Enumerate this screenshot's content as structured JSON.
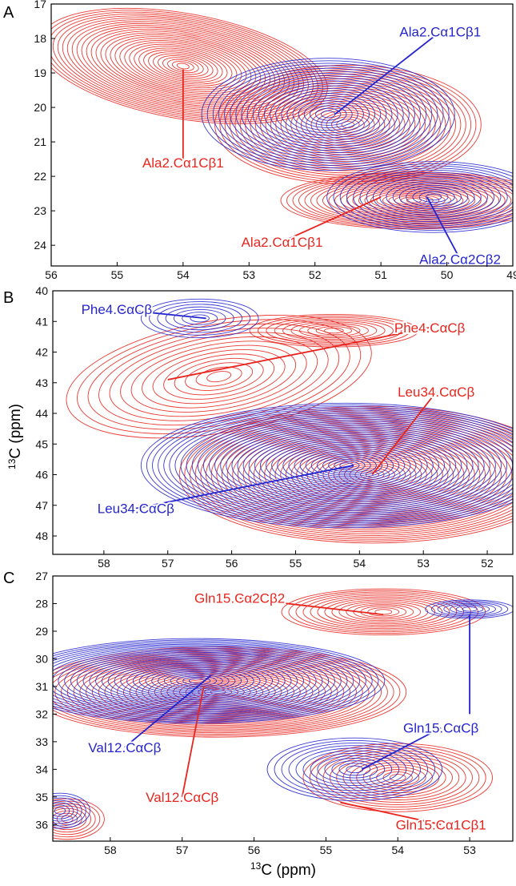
{
  "figure": {
    "xlabel": "13C (ppm)",
    "xlabel_sup": "13",
    "xlabel_rest": "C (ppm)",
    "ylabel": "13C (ppm)",
    "ylabel_sup": "13",
    "ylabel_rest": "C (ppm)"
  },
  "colors": {
    "red": "#e8251e",
    "blue": "#2525d0"
  },
  "chart_data": [
    {
      "panel": "A",
      "type": "contour",
      "xlim": [
        56,
        49
      ],
      "ylim": [
        17,
        24.6
      ],
      "x_ticks": [
        56,
        55,
        54,
        53,
        52,
        51,
        50,
        49
      ],
      "y_ticks": [
        17,
        18,
        19,
        20,
        21,
        22,
        23,
        24
      ],
      "series": [
        {
          "name": "red",
          "color": "#e8251e",
          "peaks": [
            {
              "x": 54.0,
              "y": 18.8,
              "rx": 2.2,
              "ry": 1.5,
              "angle": 10,
              "levels": 30
            },
            {
              "x": 51.5,
              "y": 20.5,
              "rx": 2.0,
              "ry": 1.7,
              "angle": 0,
              "levels": 26
            },
            {
              "x": 50.5,
              "y": 22.7,
              "rx": 2.0,
              "ry": 0.8,
              "angle": 0,
              "levels": 22
            }
          ]
        },
        {
          "name": "blue",
          "color": "#2525d0",
          "peaks": [
            {
              "x": 51.8,
              "y": 20.2,
              "rx": 1.9,
              "ry": 1.6,
              "angle": 0,
              "levels": 22
            },
            {
              "x": 50.2,
              "y": 22.6,
              "rx": 1.6,
              "ry": 1.0,
              "angle": 0,
              "levels": 16
            }
          ]
        }
      ],
      "annotations": [
        {
          "text": "Ala2.Cα1Cβ1",
          "color": "#2525d0",
          "x": 50.1,
          "y": 17.8,
          "tx": 51.7,
          "ty": 20.2
        },
        {
          "text": "Ala2.Cα1Cβ1",
          "color": "#e8251e",
          "x": 54.0,
          "y": 21.6,
          "tx": 54.0,
          "ty": 18.9
        },
        {
          "text": "Ala2.Cα1Cβ1",
          "color": "#e8251e",
          "x": 52.5,
          "y": 23.9,
          "tx": 51.0,
          "ty": 22.6
        },
        {
          "text": "Ala2.Cα2Cβ2",
          "color": "#2525d0",
          "x": 49.8,
          "y": 24.4,
          "tx": 50.3,
          "ty": 22.6
        }
      ]
    },
    {
      "panel": "B",
      "type": "contour",
      "xlim": [
        58.8,
        51.6
      ],
      "ylim": [
        40,
        48.6
      ],
      "x_ticks": [
        58,
        57,
        56,
        55,
        54,
        53,
        52
      ],
      "y_ticks": [
        40,
        41,
        42,
        43,
        44,
        45,
        46,
        47,
        48
      ],
      "series": [
        {
          "name": "red",
          "color": "#e8251e",
          "peaks": [
            {
              "x": 56.2,
              "y": 42.8,
              "rx": 2.4,
              "ry": 1.8,
              "angle": -10,
              "levels": 14
            },
            {
              "x": 54.4,
              "y": 41.3,
              "rx": 1.3,
              "ry": 0.5,
              "angle": 0,
              "levels": 10
            },
            {
              "x": 53.8,
              "y": 46.0,
              "rx": 3.0,
              "ry": 2.2,
              "angle": 0,
              "levels": 36
            }
          ]
        },
        {
          "name": "blue",
          "color": "#2525d0",
          "peaks": [
            {
              "x": 56.5,
              "y": 40.9,
              "rx": 0.9,
              "ry": 0.6,
              "angle": 0,
              "levels": 7
            },
            {
              "x": 54.2,
              "y": 45.7,
              "rx": 3.2,
              "ry": 2.0,
              "angle": 0,
              "levels": 36
            }
          ]
        }
      ],
      "annotations": [
        {
          "text": "Phe4.CαCβ",
          "color": "#2525d0",
          "x": 57.8,
          "y": 40.6,
          "tx": 56.4,
          "ty": 40.9
        },
        {
          "text": "Phe4.CαCβ",
          "color": "#e8251e",
          "x": 52.9,
          "y": 41.2,
          "tx": 57.0,
          "ty": 42.9
        },
        {
          "text": "Leu34.CαCβ",
          "color": "#e8251e",
          "x": 52.8,
          "y": 43.3,
          "tx": 53.8,
          "ty": 46.0
        },
        {
          "text": "Leu34.CαCβ",
          "color": "#2525d0",
          "x": 57.5,
          "y": 47.1,
          "tx": 54.1,
          "ty": 45.7
        }
      ]
    },
    {
      "panel": "C",
      "type": "contour",
      "xlim": [
        58.8,
        52.4
      ],
      "ylim": [
        27,
        36.6
      ],
      "x_ticks": [
        58,
        57,
        56,
        55,
        54,
        53
      ],
      "y_ticks": [
        27,
        28,
        29,
        30,
        31,
        32,
        33,
        34,
        35,
        36
      ],
      "series": [
        {
          "name": "red",
          "color": "#e8251e",
          "peaks": [
            {
              "x": 54.2,
              "y": 28.3,
              "rx": 1.4,
              "ry": 0.8,
              "angle": 0,
              "levels": 14
            },
            {
              "x": 56.5,
              "y": 31.2,
              "rx": 2.6,
              "ry": 1.6,
              "angle": 0,
              "levels": 30
            },
            {
              "x": 54.0,
              "y": 34.3,
              "rx": 1.3,
              "ry": 1.2,
              "angle": 0,
              "levels": 14
            },
            {
              "x": 58.6,
              "y": 35.8,
              "rx": 0.5,
              "ry": 0.7,
              "angle": 0,
              "levels": 8
            }
          ]
        },
        {
          "name": "blue",
          "color": "#2525d0",
          "peaks": [
            {
              "x": 53.0,
              "y": 28.2,
              "rx": 0.6,
              "ry": 0.3,
              "angle": 0,
              "levels": 7
            },
            {
              "x": 56.8,
              "y": 30.8,
              "rx": 2.6,
              "ry": 1.5,
              "angle": 0,
              "levels": 30
            },
            {
              "x": 54.6,
              "y": 34.0,
              "rx": 1.2,
              "ry": 1.1,
              "angle": 0,
              "levels": 12
            },
            {
              "x": 58.7,
              "y": 35.5,
              "rx": 0.4,
              "ry": 0.6,
              "angle": 0,
              "levels": 7
            }
          ]
        }
      ],
      "annotations": [
        {
          "text": "Gln15.Cα2Cβ2",
          "color": "#e8251e",
          "x": 56.2,
          "y": 27.8,
          "tx": 54.2,
          "ty": 28.4
        },
        {
          "text": "Gln15.CαCβ",
          "color": "#2525d0",
          "x": 53.4,
          "y": 32.5,
          "tx": 54.5,
          "ty": 34.0
        },
        {
          "text": "Val12.CαCβ",
          "color": "#2525d0",
          "x": 57.8,
          "y": 33.2,
          "tx": 56.6,
          "ty": 30.6
        },
        {
          "text": "Val12.CαCβ",
          "color": "#e8251e",
          "x": 57.0,
          "y": 35.0,
          "tx": 56.7,
          "ty": 31.0
        },
        {
          "text": "Gln15.Cα1Cβ1",
          "color": "#e8251e",
          "x": 53.4,
          "y": 36.0,
          "tx": 54.8,
          "ty": 35.2
        },
        {
          "text": "Gln15.CαCβ",
          "color": "#2525d0",
          "x": 53.0,
          "y": 32.0,
          "tx": 53.0,
          "ty": 28.4,
          "hidden_label": true
        }
      ]
    }
  ]
}
